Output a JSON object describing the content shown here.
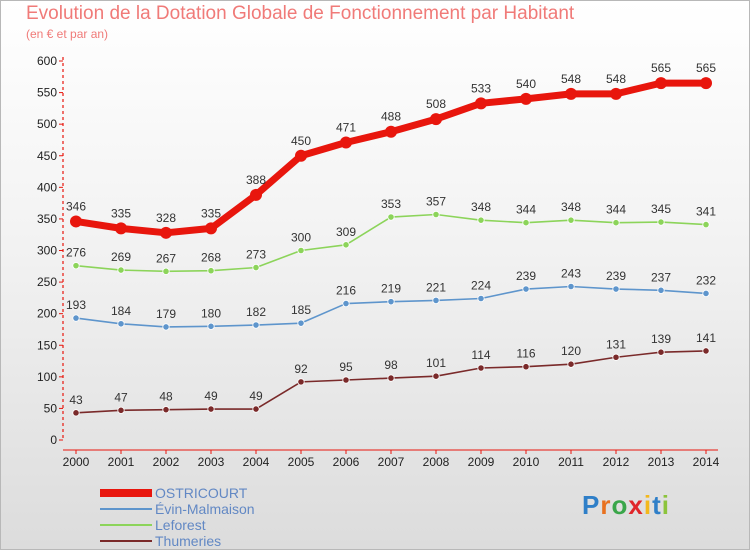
{
  "chart_data": {
    "type": "line",
    "title": "Evolution de la Dotation Globale de Fonctionnement par Habitant",
    "subtitle": "(en € et par an)",
    "x": [
      "2000",
      "2001",
      "2002",
      "2003",
      "2004",
      "2005",
      "2006",
      "2007",
      "2008",
      "2009",
      "2010",
      "2011",
      "2012",
      "2013",
      "2014"
    ],
    "yticks": [
      0,
      50,
      100,
      150,
      200,
      250,
      300,
      350,
      400,
      450,
      500,
      550,
      600
    ],
    "ylim": [
      0,
      600
    ],
    "grid": false,
    "legend_position": "bottom-left",
    "series": [
      {
        "name": "OSTRICOURT",
        "color": "#e8160d",
        "values": [
          346,
          335,
          328,
          335,
          388,
          450,
          471,
          488,
          508,
          533,
          540,
          548,
          548,
          565,
          565
        ]
      },
      {
        "name": "Évin-Malmaison",
        "color": "#5e95cc",
        "values": [
          193,
          184,
          179,
          180,
          182,
          185,
          216,
          219,
          221,
          224,
          239,
          243,
          239,
          237,
          232
        ]
      },
      {
        "name": "Leforest",
        "color": "#8cd45a",
        "values": [
          276,
          269,
          267,
          268,
          273,
          300,
          309,
          353,
          357,
          348,
          344,
          348,
          344,
          345,
          341
        ]
      },
      {
        "name": "Thumeries",
        "color": "#7a2a2a",
        "values": [
          43,
          47,
          48,
          49,
          49,
          92,
          95,
          98,
          101,
          114,
          116,
          120,
          131,
          139,
          141
        ]
      }
    ]
  },
  "branding": {
    "logo_letters": [
      "P",
      "r",
      "o",
      "x",
      "i",
      "t",
      "i"
    ],
    "logo_colors": [
      "#2f7fc8",
      "#e8711f",
      "#3aa64a",
      "#e0262a",
      "#f3b81c",
      "#2f7fc8",
      "#8cc43c"
    ]
  }
}
